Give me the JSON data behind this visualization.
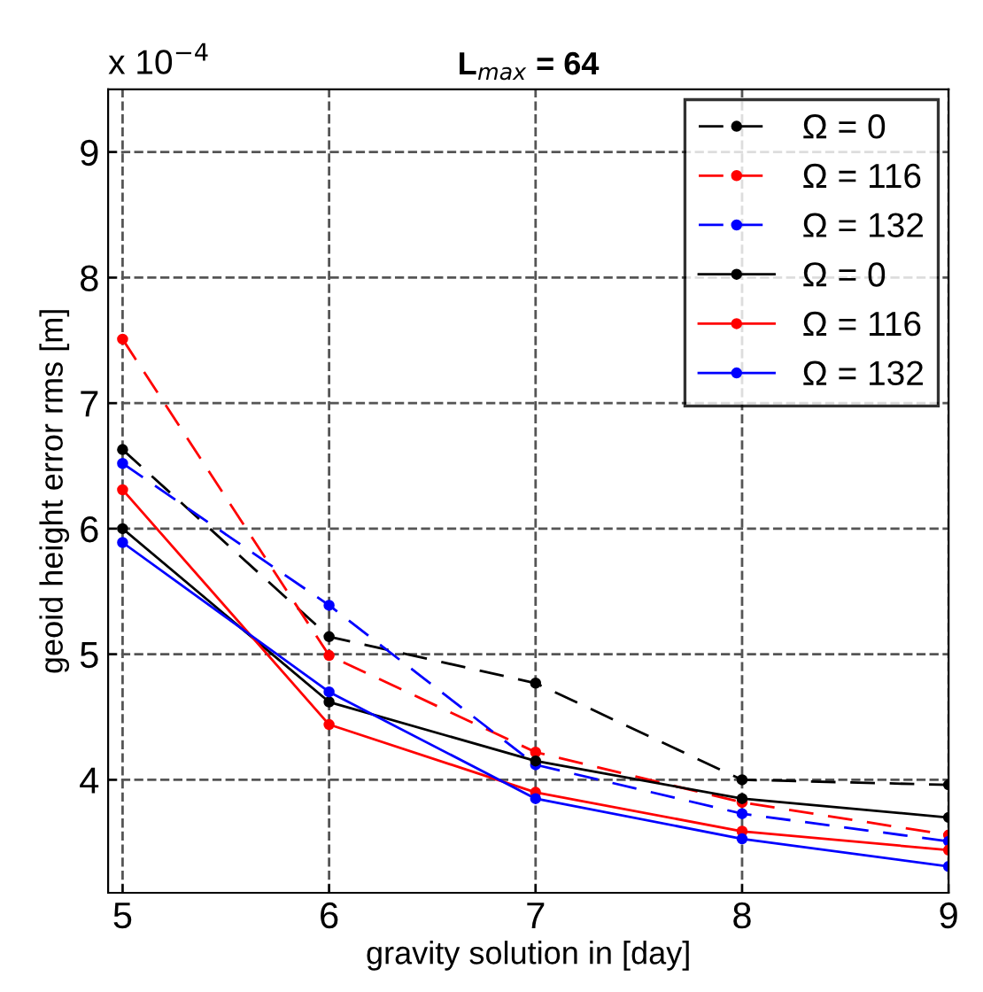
{
  "chart_data": {
    "type": "line",
    "title": "L$_{max}$ = 64",
    "xlabel": "gravity solution in [day]",
    "ylabel": "geoid height error rms [m]",
    "annotations": [
      "x 10$^{−4}$"
    ],
    "x": [
      5,
      6,
      7,
      8,
      9
    ],
    "series": [
      {
        "name": "Ω = 0",
        "color": "#000000",
        "line_style": "dashed",
        "values": [
          6.63,
          5.14,
          4.77,
          4.0,
          3.96
        ]
      },
      {
        "name": "Ω = 116",
        "color": "#ff0000",
        "line_style": "dashed",
        "values": [
          7.51,
          4.99,
          4.22,
          3.82,
          3.56
        ]
      },
      {
        "name": "Ω = 132",
        "color": "#0000ff",
        "line_style": "dashed",
        "values": [
          6.52,
          5.39,
          4.12,
          3.73,
          3.51
        ]
      },
      {
        "name": "Ω = 0",
        "color": "#000000",
        "line_style": "solid",
        "values": [
          6.0,
          4.62,
          4.15,
          3.85,
          3.7
        ]
      },
      {
        "name": "Ω = 116",
        "color": "#ff0000",
        "line_style": "solid",
        "values": [
          6.31,
          4.44,
          3.9,
          3.59,
          3.44
        ]
      },
      {
        "name": "Ω = 132",
        "color": "#0000ff",
        "line_style": "solid",
        "values": [
          5.89,
          4.7,
          3.85,
          3.53,
          3.31
        ]
      }
    ],
    "xlim": [
      4.93,
      9
    ],
    "ylim": [
      3.1,
      9.5
    ],
    "xticks": [
      5,
      6,
      7,
      8,
      9
    ],
    "yticks": [
      4,
      5,
      6,
      7,
      8,
      9
    ],
    "grid": true,
    "legend": "top right",
    "marker": "circle"
  }
}
